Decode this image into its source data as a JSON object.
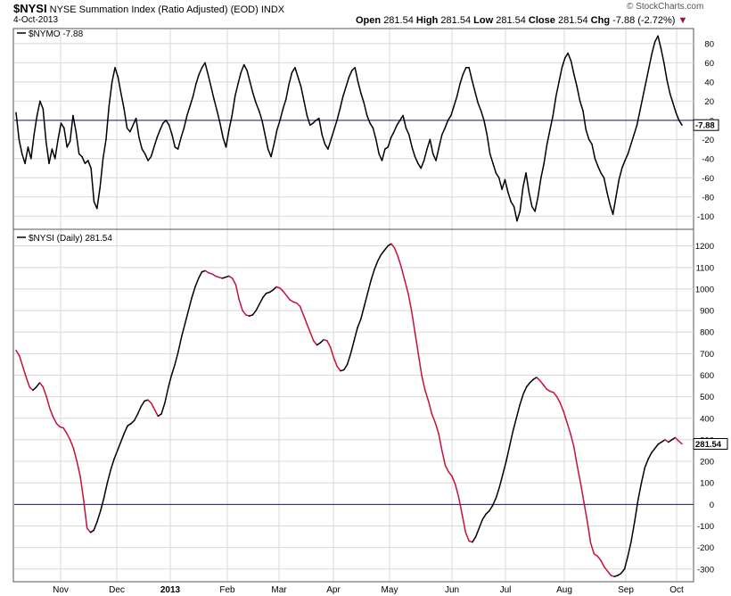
{
  "header": {
    "symbol": "$NYSI",
    "description": "NYSE Summation Index (Ratio Adjusted) (EOD)",
    "exchange": "INDX",
    "date": "4-Oct-2013",
    "open_label": "Open",
    "open_value": "281.54",
    "high_label": "High",
    "high_value": "281.54",
    "low_label": "Low",
    "low_value": "281.54",
    "close_label": "Close",
    "close_value": "281.54",
    "chg_label": "Chg",
    "chg_value": "-7.88 (-2.72%)",
    "chg_arrow": "▼",
    "brand": "© StockCharts.com"
  },
  "colors": {
    "line": "#000000",
    "down": "#c8103c",
    "grid": "#d8d8d8",
    "zero": "#1a1a5e",
    "frame": "#555555"
  },
  "chart_data": [
    {
      "type": "line",
      "legend": "$NYMO -7.88",
      "ylim": [
        -110,
        92
      ],
      "yticks": [
        80,
        60,
        40,
        20,
        0,
        -20,
        -40,
        -60,
        -80,
        -100
      ],
      "last_value": "-7.88",
      "x_start": "2013-10-04 (prior year)",
      "series": [
        {
          "name": "$NYMO",
          "values": [
            8,
            -20,
            -35,
            -45,
            -28,
            -40,
            -15,
            5,
            20,
            12,
            -22,
            -45,
            -30,
            -40,
            -20,
            -3,
            -8,
            -28,
            -22,
            5,
            -12,
            -35,
            -38,
            -45,
            -42,
            -50,
            -85,
            -92,
            -70,
            -40,
            -20,
            15,
            40,
            55,
            45,
            28,
            12,
            -8,
            -12,
            -5,
            2,
            -18,
            -30,
            -35,
            -42,
            -38,
            -28,
            -18,
            -10,
            -3,
            0,
            -5,
            -15,
            -28,
            -30,
            -18,
            -8,
            5,
            15,
            25,
            38,
            48,
            55,
            60,
            48,
            35,
            22,
            10,
            -3,
            -18,
            -28,
            -10,
            5,
            25,
            38,
            50,
            58,
            52,
            40,
            28,
            18,
            10,
            0,
            -15,
            -30,
            -38,
            -25,
            -10,
            0,
            12,
            22,
            38,
            50,
            55,
            45,
            35,
            20,
            5,
            -5,
            -3,
            0,
            2,
            -15,
            -25,
            -30,
            -20,
            -10,
            0,
            12,
            25,
            35,
            45,
            52,
            55,
            40,
            28,
            18,
            5,
            -3,
            -8,
            -20,
            -35,
            -42,
            -30,
            -28,
            -18,
            -12,
            -5,
            0,
            5,
            -8,
            -15,
            -28,
            -38,
            -45,
            -50,
            -42,
            -30,
            -20,
            -35,
            -42,
            -28,
            -15,
            -8,
            0,
            5,
            15,
            25,
            38,
            48,
            55,
            55,
            42,
            30,
            18,
            10,
            0,
            -15,
            -35,
            -45,
            -55,
            -60,
            -72,
            -62,
            -75,
            -85,
            -90,
            -105,
            -95,
            -70,
            -55,
            -75,
            -90,
            -95,
            -80,
            -60,
            -45,
            -25,
            -10,
            5,
            25,
            40,
            55,
            65,
            70,
            62,
            48,
            35,
            20,
            10,
            -10,
            -20,
            -25,
            -40,
            -48,
            -55,
            -60,
            -75,
            -88,
            -98,
            -80,
            -62,
            -50,
            -42,
            -35,
            -25,
            -15,
            -5,
            10,
            25,
            40,
            55,
            70,
            82,
            88,
            75,
            60,
            42,
            28,
            18,
            8,
            0,
            -5
          ],
          "note": "daily values approx."
        }
      ]
    },
    {
      "type": "line",
      "legend": "$NYSI (Daily) 281.54",
      "ylim": [
        -330,
        1240
      ],
      "yticks": [
        1200,
        1100,
        1000,
        900,
        800,
        700,
        600,
        500,
        400,
        300,
        200,
        100,
        0,
        -100,
        -200,
        -300
      ],
      "last_value": "281.54",
      "xlabels": [
        "Nov",
        "Dec",
        "2013",
        "Feb",
        "Mar",
        "Apr",
        "May",
        "Jun",
        "Jul",
        "Aug",
        "Sep",
        "Oct"
      ],
      "series": [
        {
          "name": "$NYSI",
          "values": [
            715,
            690,
            640,
            590,
            545,
            530,
            545,
            565,
            545,
            500,
            445,
            405,
            375,
            360,
            355,
            330,
            300,
            260,
            200,
            130,
            20,
            -110,
            -130,
            -120,
            -80,
            -30,
            30,
            100,
            160,
            210,
            250,
            290,
            330,
            365,
            375,
            390,
            420,
            455,
            480,
            485,
            470,
            440,
            410,
            420,
            470,
            540,
            600,
            650,
            710,
            780,
            840,
            900,
            960,
            1010,
            1050,
            1080,
            1085,
            1075,
            1070,
            1060,
            1055,
            1050,
            1055,
            1060,
            1050,
            1020,
            950,
            900,
            880,
            875,
            880,
            900,
            930,
            960,
            980,
            985,
            995,
            1010,
            1005,
            990,
            970,
            950,
            940,
            935,
            920,
            880,
            840,
            800,
            760,
            740,
            750,
            765,
            760,
            730,
            680,
            640,
            620,
            625,
            650,
            700,
            760,
            820,
            860,
            920,
            980,
            1040,
            1090,
            1130,
            1160,
            1180,
            1200,
            1210,
            1190,
            1150,
            1100,
            1040,
            980,
            900,
            800,
            700,
            600,
            530,
            480,
            420,
            380,
            330,
            250,
            180,
            150,
            130,
            90,
            30,
            -50,
            -130,
            -170,
            -175,
            -150,
            -110,
            -70,
            -45,
            -30,
            -5,
            30,
            80,
            140,
            200,
            270,
            340,
            400,
            460,
            510,
            545,
            565,
            580,
            590,
            575,
            555,
            535,
            525,
            520,
            500,
            470,
            430,
            380,
            330,
            270,
            180,
            100,
            10,
            -80,
            -180,
            -230,
            -240,
            -260,
            -290,
            -310,
            -330,
            -335,
            -330,
            -320,
            -300,
            -240,
            -170,
            -80,
            20,
            100,
            170,
            210,
            240,
            260,
            280,
            290,
            300,
            289,
            300,
            310,
            295,
            281
          ],
          "note": "daily values approx."
        }
      ]
    }
  ]
}
